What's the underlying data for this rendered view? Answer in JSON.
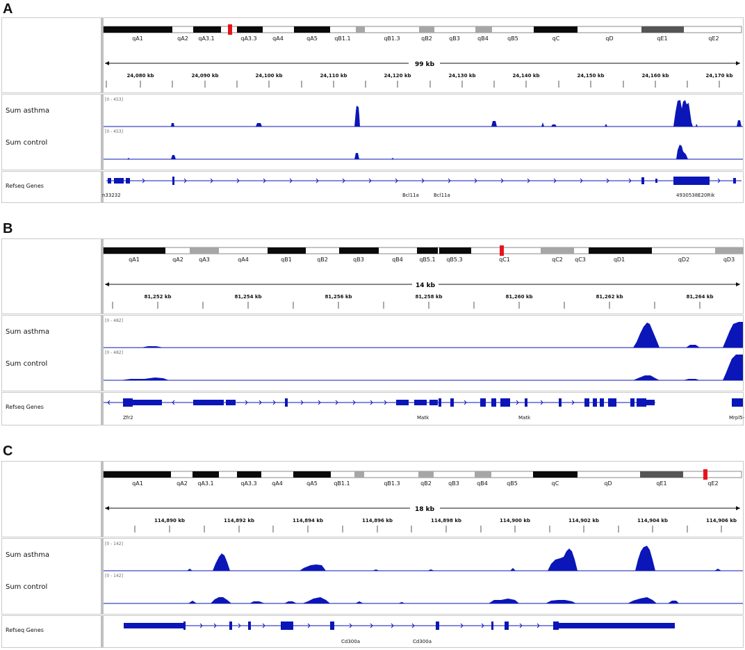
{
  "panels": [
    {
      "letter": "A",
      "cytobands": [
        {
          "name": "qA1",
          "stain": "black"
        },
        {
          "name": "qA2",
          "stain": "white"
        },
        {
          "name": "qA3.1",
          "stain": "black"
        },
        {
          "name": "qA3.3",
          "stain": "black"
        },
        {
          "name": "qA4",
          "stain": "white"
        },
        {
          "name": "qA5",
          "stain": "black"
        },
        {
          "name": "qB1.1",
          "stain": "white"
        },
        {
          "name": "qB1.3",
          "stain": "white"
        },
        {
          "name": "qB2",
          "stain": "gray"
        },
        {
          "name": "qB3",
          "stain": "white"
        },
        {
          "name": "qB4",
          "stain": "gray"
        },
        {
          "name": "qB5",
          "stain": "white"
        },
        {
          "name": "qC",
          "stain": "black"
        },
        {
          "name": "qD",
          "stain": "white"
        },
        {
          "name": "qE1",
          "stain": "darkgray"
        },
        {
          "name": "qE2",
          "stain": "white"
        }
      ],
      "span_label": "99 kb",
      "ruler_ticks": [
        "24,080 kb",
        "24,090 kb",
        "24,100 kb",
        "24,110 kb",
        "24,120 kb",
        "24,130 kb",
        "24,140 kb",
        "24,150 kb",
        "24,160 kb",
        "24,170 kb"
      ],
      "tracks": [
        {
          "name": "Sum asthma",
          "range": "[0 - 453]"
        },
        {
          "name": "Sum control",
          "range": "[0 - 453]"
        }
      ],
      "genes_label": "Refseq Genes",
      "gene_names": [
        "n33232",
        "Bcl11a",
        "Bcl11a",
        "4930538E20Rik"
      ]
    },
    {
      "letter": "B",
      "cytobands": [
        {
          "name": "qA1",
          "stain": "black"
        },
        {
          "name": "qA2",
          "stain": "white"
        },
        {
          "name": "qA3",
          "stain": "gray"
        },
        {
          "name": "qA4",
          "stain": "white"
        },
        {
          "name": "qB1",
          "stain": "black"
        },
        {
          "name": "qB2",
          "stain": "white"
        },
        {
          "name": "qB3",
          "stain": "black"
        },
        {
          "name": "qB4",
          "stain": "white"
        },
        {
          "name": "qB5.1",
          "stain": "black"
        },
        {
          "name": "qB5.3",
          "stain": "black"
        },
        {
          "name": "qC1",
          "stain": "white"
        },
        {
          "name": "qC2",
          "stain": "gray"
        },
        {
          "name": "qC3",
          "stain": "white"
        },
        {
          "name": "qD1",
          "stain": "black"
        },
        {
          "name": "qD2",
          "stain": "white"
        },
        {
          "name": "qD3",
          "stain": "gray"
        }
      ],
      "span_label": "14 kb",
      "ruler_ticks": [
        "81,252 kb",
        "81,254 kb",
        "81,256 kb",
        "81,258 kb",
        "81,260 kb",
        "81,262 kb",
        "81,264 kb"
      ],
      "tracks": [
        {
          "name": "Sum asthma",
          "range": "[0 - 482]"
        },
        {
          "name": "Sum control",
          "range": "[0 - 482]"
        }
      ],
      "genes_label": "Refseq Genes",
      "gene_names": [
        "Zfr2",
        "Matk",
        "Matk",
        "Mrpl5-"
      ]
    },
    {
      "letter": "C",
      "cytobands": [
        {
          "name": "qA1",
          "stain": "black"
        },
        {
          "name": "qA2",
          "stain": "white"
        },
        {
          "name": "qA3.1",
          "stain": "black"
        },
        {
          "name": "qA3.3",
          "stain": "black"
        },
        {
          "name": "qA4",
          "stain": "white"
        },
        {
          "name": "qA5",
          "stain": "black"
        },
        {
          "name": "qB1.1",
          "stain": "white"
        },
        {
          "name": "qB1.3",
          "stain": "white"
        },
        {
          "name": "qB2",
          "stain": "gray"
        },
        {
          "name": "qB3",
          "stain": "white"
        },
        {
          "name": "qB4",
          "stain": "gray"
        },
        {
          "name": "qB5",
          "stain": "white"
        },
        {
          "name": "qC",
          "stain": "black"
        },
        {
          "name": "qD",
          "stain": "white"
        },
        {
          "name": "qE1",
          "stain": "darkgray"
        },
        {
          "name": "qE2",
          "stain": "white"
        }
      ],
      "span_label": "18 kb",
      "ruler_ticks": [
        "114,890 kb",
        "114,892 kb",
        "114,894 kb",
        "114,896 kb",
        "114,898 kb",
        "114,900 kb",
        "114,902 kb",
        "114,904 kb",
        "114,906 kb"
      ],
      "tracks": [
        {
          "name": "Sum asthma",
          "range": "[0 - 142]"
        },
        {
          "name": "Sum control",
          "range": "[0 - 142]"
        }
      ],
      "genes_label": "Refseq Genes",
      "gene_names": [
        "Cd300a",
        "Cd300a"
      ]
    }
  ],
  "colors": {
    "signal": "#0b16b8",
    "marker": "#e8141b",
    "band_black": "#0a0a0a",
    "band_gray": "#a6a6a6",
    "band_darkgray": "#555555"
  }
}
